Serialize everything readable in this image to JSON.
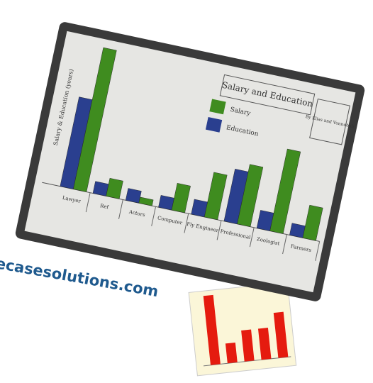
{
  "chart_data": {
    "type": "bar",
    "title": "Salary and Education",
    "author": "By Elias and Vonnebuh",
    "y_label": "Salary & Education (years)",
    "categories": [
      "Lawyer",
      "Ref",
      "Actors",
      "Computer",
      "Fly Engineer",
      "Professional",
      "Zoologist",
      "Farmers"
    ],
    "series": [
      {
        "name": "Education",
        "color": "#2a3f8f",
        "values": [
          60,
          8,
          8,
          8,
          10,
          35,
          12,
          8
        ]
      },
      {
        "name": "Salary",
        "color": "#3f8c1f",
        "values": [
          95,
          12,
          4,
          18,
          30,
          40,
          55,
          22
        ]
      }
    ]
  },
  "watermark": "ecasesolutions.com"
}
